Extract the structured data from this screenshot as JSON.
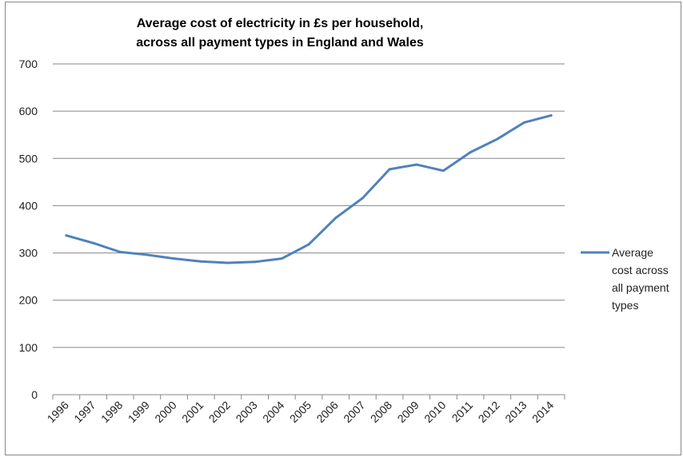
{
  "chart_data": {
    "type": "line",
    "title_lines": [
      "Average cost of electricity in £s per household,",
      "across all payment types in England and Wales"
    ],
    "categories": [
      "1996",
      "1997",
      "1998",
      "1999",
      "2000",
      "2001",
      "2002",
      "2003",
      "2004",
      "2005",
      "2006",
      "2007",
      "2008",
      "2009",
      "2010",
      "2011",
      "2012",
      "2013",
      "2014"
    ],
    "series": [
      {
        "name": "Average cost across all payment types",
        "legend_lines": [
          "Average",
          "cost across",
          "all payment",
          "types"
        ],
        "color": "#4f81bd",
        "values": [
          337,
          321,
          302,
          296,
          288,
          282,
          279,
          281,
          288,
          318,
          374,
          416,
          477,
          487,
          474,
          513,
          541,
          576,
          591
        ]
      }
    ],
    "ylim": [
      0,
      700
    ],
    "yticks": [
      0,
      100,
      200,
      300,
      400,
      500,
      600,
      700
    ],
    "grid": true,
    "legend_position": "right"
  }
}
